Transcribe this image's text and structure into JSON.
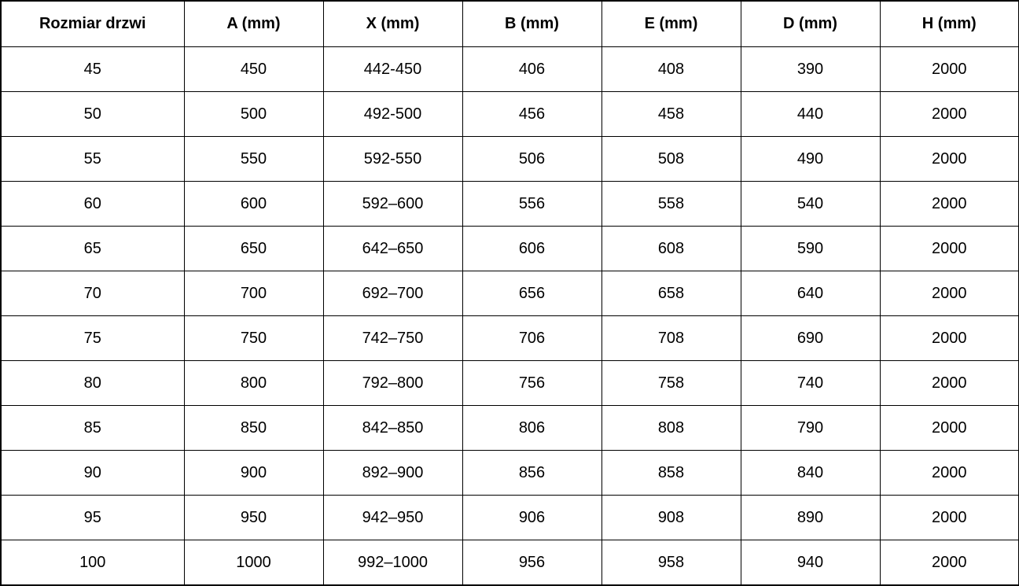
{
  "colors": {
    "border": "#000000",
    "background": "#ffffff",
    "text": "#000000"
  },
  "table": {
    "columns": [
      "Rozmiar drzwi",
      "A (mm)",
      "X (mm)",
      "B (mm)",
      "E (mm)",
      "D (mm)",
      "H (mm)"
    ],
    "rows": [
      [
        "45",
        "450",
        "442-450",
        "406",
        "408",
        "390",
        "2000"
      ],
      [
        "50",
        "500",
        "492-500",
        "456",
        "458",
        "440",
        "2000"
      ],
      [
        "55",
        "550",
        "592-550",
        "506",
        "508",
        "490",
        "2000"
      ],
      [
        "60",
        "600",
        "592–600",
        "556",
        "558",
        "540",
        "2000"
      ],
      [
        "65",
        "650",
        "642–650",
        "606",
        "608",
        "590",
        "2000"
      ],
      [
        "70",
        "700",
        "692–700",
        "656",
        "658",
        "640",
        "2000"
      ],
      [
        "75",
        "750",
        "742–750",
        "706",
        "708",
        "690",
        "2000"
      ],
      [
        "80",
        "800",
        "792–800",
        "756",
        "758",
        "740",
        "2000"
      ],
      [
        "85",
        "850",
        "842–850",
        "806",
        "808",
        "790",
        "2000"
      ],
      [
        "90",
        "900",
        "892–900",
        "856",
        "858",
        "840",
        "2000"
      ],
      [
        "95",
        "950",
        "942–950",
        "906",
        "908",
        "890",
        "2000"
      ],
      [
        "100",
        "1000",
        "992–1000",
        "956",
        "958",
        "940",
        "2000"
      ]
    ]
  }
}
